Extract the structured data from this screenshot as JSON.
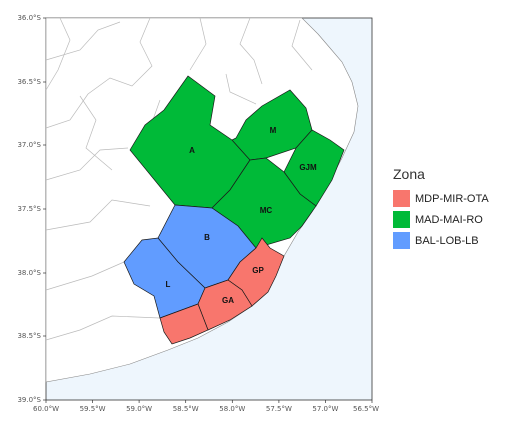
{
  "map": {
    "x_ticks": [
      "60.0°W",
      "59.5°W",
      "59.0°W",
      "58.5°W",
      "58.0°W",
      "57.5°W",
      "57.0°W",
      "56.5°W"
    ],
    "y_ticks": [
      "36.0°S",
      "36.5°S",
      "37.0°S",
      "37.5°S",
      "38.0°S",
      "38.5°S",
      "39.0°S"
    ],
    "zone_labels": {
      "a": "A",
      "m": "M",
      "gjm": "GJM",
      "mc": "MC",
      "b": "B",
      "l": "L",
      "gp": "GP",
      "ga": "GA"
    }
  },
  "legend": {
    "title": "Zona",
    "items": [
      {
        "label": "MDP-MIR-OTA",
        "color": "#f8766d"
      },
      {
        "label": "MAD-MAI-RO",
        "color": "#00ba38"
      },
      {
        "label": "BAL-LOB-LB",
        "color": "#619cff"
      }
    ]
  },
  "colors": {
    "sea": "#eef6fd",
    "land": "#ffffff",
    "border": "#aaaaaa"
  }
}
